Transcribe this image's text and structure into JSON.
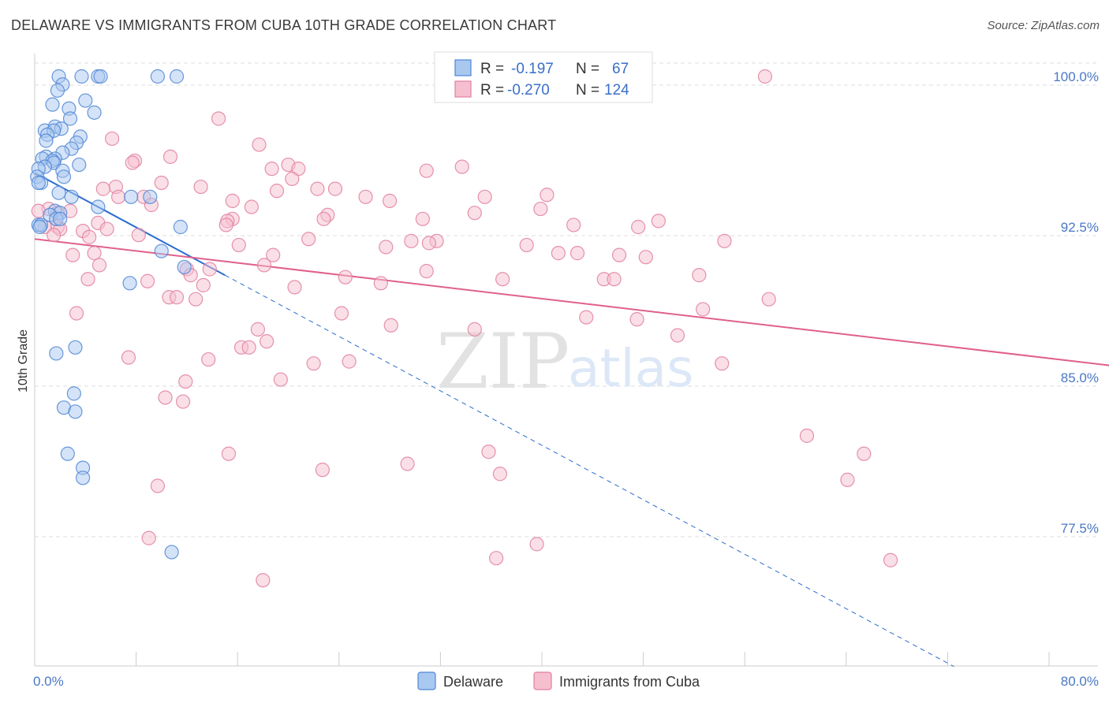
{
  "title": "DELAWARE VS IMMIGRANTS FROM CUBA 10TH GRADE CORRELATION CHART",
  "source": "Source: ZipAtlas.com",
  "watermark": {
    "zip": "ZIP",
    "atlas": "atlas"
  },
  "colors": {
    "delaware_fill": "#a9c8f0",
    "delaware_stroke": "#4f86d6",
    "delaware_line": "#2a6ccf",
    "cuba_fill": "#f6bfd0",
    "cuba_stroke": "#e07fa0",
    "cuba_line": "#e0608a",
    "tick_label": "#4a78c4",
    "grid": "#dddddd"
  },
  "legend": {
    "rows": [
      {
        "r_label": "R =",
        "r_value": "-0.197",
        "n_label": "N =",
        "n_value": "67"
      },
      {
        "r_label": "R =",
        "r_value": "-0.270",
        "n_label": "N =",
        "n_value": "124"
      }
    ]
  },
  "bottom_legend": [
    "Delaware",
    "Immigrants from Cuba"
  ],
  "chart_data": {
    "type": "scatter",
    "ylabel": "10th Grade",
    "xlabel": "",
    "xlim": [
      0,
      80
    ],
    "ylim": [
      71.5,
      100.8
    ],
    "x_tick_labels": [
      {
        "value": 0,
        "label": "0.0%"
      },
      {
        "value": 80,
        "label": "80.0%"
      }
    ],
    "y_ticks": [
      {
        "value": 100.0,
        "label": "100.0%"
      },
      {
        "value": 92.5,
        "label": "92.5%"
      },
      {
        "value": 85.0,
        "label": "85.0%"
      },
      {
        "value": 77.5,
        "label": "77.5%"
      }
    ],
    "grid": true,
    "legend_position": "top-center",
    "series": [
      {
        "name": "Delaware",
        "r": -0.197,
        "n": 67,
        "trend": {
          "x0": 0,
          "y0": 95.2,
          "x1": 15,
          "y1": 90.1,
          "dashed_to_x": 72.5,
          "dashed_to_y": 70.6
        },
        "points": [
          [
            1.9,
            100.0
          ],
          [
            3.7,
            100.0
          ],
          [
            5.0,
            100.0
          ],
          [
            5.2,
            100.0
          ],
          [
            9.7,
            100.0
          ],
          [
            11.2,
            100.0
          ],
          [
            2.2,
            99.6
          ],
          [
            1.8,
            99.3
          ],
          [
            4.0,
            98.8
          ],
          [
            1.4,
            98.6
          ],
          [
            2.7,
            98.4
          ],
          [
            4.7,
            98.2
          ],
          [
            2.8,
            97.9
          ],
          [
            1.6,
            97.5
          ],
          [
            2.1,
            97.4
          ],
          [
            0.8,
            97.3
          ],
          [
            1.5,
            97.3
          ],
          [
            1.0,
            97.1
          ],
          [
            3.6,
            97.0
          ],
          [
            0.9,
            96.8
          ],
          [
            3.3,
            96.7
          ],
          [
            2.9,
            96.4
          ],
          [
            2.2,
            96.2
          ],
          [
            0.9,
            96.0
          ],
          [
            1.6,
            95.9
          ],
          [
            0.6,
            95.9
          ],
          [
            1.4,
            95.8
          ],
          [
            1.5,
            95.7
          ],
          [
            3.5,
            95.6
          ],
          [
            0.8,
            95.5
          ],
          [
            0.3,
            95.4
          ],
          [
            2.2,
            95.3
          ],
          [
            2.3,
            95.0
          ],
          [
            0.2,
            95.0
          ],
          [
            0.5,
            94.7
          ],
          [
            0.3,
            94.7
          ],
          [
            1.9,
            94.2
          ],
          [
            2.9,
            94.0
          ],
          [
            7.6,
            94.0
          ],
          [
            9.1,
            94.0
          ],
          [
            5.0,
            93.5
          ],
          [
            1.6,
            93.3
          ],
          [
            2.0,
            93.2
          ],
          [
            1.2,
            93.1
          ],
          [
            1.7,
            92.9
          ],
          [
            2.0,
            92.9
          ],
          [
            0.3,
            92.6
          ],
          [
            0.5,
            92.6
          ],
          [
            0.4,
            92.5
          ],
          [
            11.5,
            92.5
          ],
          [
            10.0,
            91.3
          ],
          [
            11.8,
            90.5
          ],
          [
            7.5,
            89.7
          ],
          [
            3.2,
            86.5
          ],
          [
            1.7,
            86.2
          ],
          [
            3.1,
            84.2
          ],
          [
            2.3,
            83.5
          ],
          [
            3.2,
            83.3
          ],
          [
            2.6,
            81.2
          ],
          [
            3.8,
            80.5
          ],
          [
            3.8,
            80.0
          ],
          [
            10.8,
            76.3
          ]
        ]
      },
      {
        "name": "Immigrants from Cuba",
        "r": -0.27,
        "n": 124,
        "trend": {
          "x0": 0,
          "y0": 91.9,
          "x1": 87.5,
          "y1": 85.4
        },
        "points": [
          [
            57.6,
            100.0
          ],
          [
            14.5,
            97.9
          ],
          [
            6.1,
            96.9
          ],
          [
            17.7,
            96.6
          ],
          [
            10.7,
            96.0
          ],
          [
            7.9,
            95.8
          ],
          [
            7.7,
            95.7
          ],
          [
            20.0,
            95.6
          ],
          [
            20.8,
            95.4
          ],
          [
            18.7,
            95.4
          ],
          [
            33.7,
            95.5
          ],
          [
            30.9,
            95.3
          ],
          [
            20.3,
            94.9
          ],
          [
            10.0,
            94.7
          ],
          [
            6.4,
            94.5
          ],
          [
            13.1,
            94.5
          ],
          [
            5.4,
            94.4
          ],
          [
            22.3,
            94.4
          ],
          [
            23.7,
            94.4
          ],
          [
            19.1,
            94.3
          ],
          [
            6.6,
            94.0
          ],
          [
            8.6,
            94.0
          ],
          [
            26.1,
            94.0
          ],
          [
            35.5,
            94.0
          ],
          [
            40.4,
            94.1
          ],
          [
            28.0,
            93.8
          ],
          [
            15.6,
            93.8
          ],
          [
            9.2,
            93.6
          ],
          [
            17.1,
            93.5
          ],
          [
            39.9,
            93.4
          ],
          [
            1.1,
            93.4
          ],
          [
            0.3,
            93.3
          ],
          [
            2.8,
            93.3
          ],
          [
            1.8,
            93.2
          ],
          [
            34.7,
            93.2
          ],
          [
            23.1,
            93.1
          ],
          [
            22.8,
            92.9
          ],
          [
            15.6,
            92.9
          ],
          [
            30.6,
            92.9
          ],
          [
            15.2,
            92.8
          ],
          [
            49.2,
            92.8
          ],
          [
            5.0,
            92.7
          ],
          [
            42.5,
            92.6
          ],
          [
            15.1,
            92.6
          ],
          [
            47.6,
            92.5
          ],
          [
            0.8,
            92.5
          ],
          [
            1.8,
            92.5
          ],
          [
            2.0,
            92.4
          ],
          [
            5.7,
            92.4
          ],
          [
            3.8,
            92.3
          ],
          [
            1.5,
            92.1
          ],
          [
            8.2,
            92.1
          ],
          [
            4.3,
            92.0
          ],
          [
            21.6,
            91.9
          ],
          [
            29.7,
            91.8
          ],
          [
            31.7,
            91.8
          ],
          [
            31.1,
            91.7
          ],
          [
            16.1,
            91.6
          ],
          [
            38.8,
            91.6
          ],
          [
            27.7,
            91.5
          ],
          [
            54.4,
            91.8
          ],
          [
            41.3,
            91.2
          ],
          [
            42.8,
            91.2
          ],
          [
            46.1,
            91.1
          ],
          [
            3.0,
            91.1
          ],
          [
            18.8,
            91.1
          ],
          [
            4.7,
            91.2
          ],
          [
            48.2,
            91.0
          ],
          [
            5.1,
            90.6
          ],
          [
            18.1,
            90.6
          ],
          [
            12.0,
            90.4
          ],
          [
            13.8,
            90.4
          ],
          [
            30.9,
            90.3
          ],
          [
            12.3,
            90.1
          ],
          [
            52.4,
            90.1
          ],
          [
            24.5,
            90.0
          ],
          [
            4.2,
            89.9
          ],
          [
            44.9,
            89.9
          ],
          [
            36.9,
            89.9
          ],
          [
            45.7,
            89.9
          ],
          [
            8.9,
            89.8
          ],
          [
            27.3,
            89.7
          ],
          [
            13.3,
            89.6
          ],
          [
            20.5,
            89.5
          ],
          [
            10.6,
            89.0
          ],
          [
            11.2,
            89.0
          ],
          [
            12.7,
            88.9
          ],
          [
            57.9,
            88.9
          ],
          [
            52.7,
            88.4
          ],
          [
            3.3,
            88.2
          ],
          [
            24.2,
            88.2
          ],
          [
            43.5,
            88.0
          ],
          [
            47.5,
            87.9
          ],
          [
            28.1,
            87.6
          ],
          [
            17.6,
            87.4
          ],
          [
            34.7,
            87.4
          ],
          [
            50.7,
            87.1
          ],
          [
            18.3,
            86.8
          ],
          [
            16.3,
            86.5
          ],
          [
            16.9,
            86.5
          ],
          [
            7.4,
            86.0
          ],
          [
            13.7,
            85.9
          ],
          [
            24.8,
            85.8
          ],
          [
            22.0,
            85.7
          ],
          [
            54.2,
            85.7
          ],
          [
            11.9,
            84.8
          ],
          [
            19.4,
            84.9
          ],
          [
            10.3,
            84.0
          ],
          [
            11.7,
            83.8
          ],
          [
            60.9,
            82.1
          ],
          [
            35.8,
            81.3
          ],
          [
            15.3,
            81.2
          ],
          [
            65.4,
            81.2
          ],
          [
            29.4,
            80.7
          ],
          [
            22.7,
            80.4
          ],
          [
            36.7,
            80.2
          ],
          [
            64.1,
            79.9
          ],
          [
            9.7,
            79.6
          ],
          [
            9.0,
            77.0
          ],
          [
            39.6,
            76.7
          ],
          [
            36.4,
            76.0
          ],
          [
            67.5,
            75.9
          ],
          [
            18.0,
            74.9
          ]
        ]
      }
    ]
  }
}
